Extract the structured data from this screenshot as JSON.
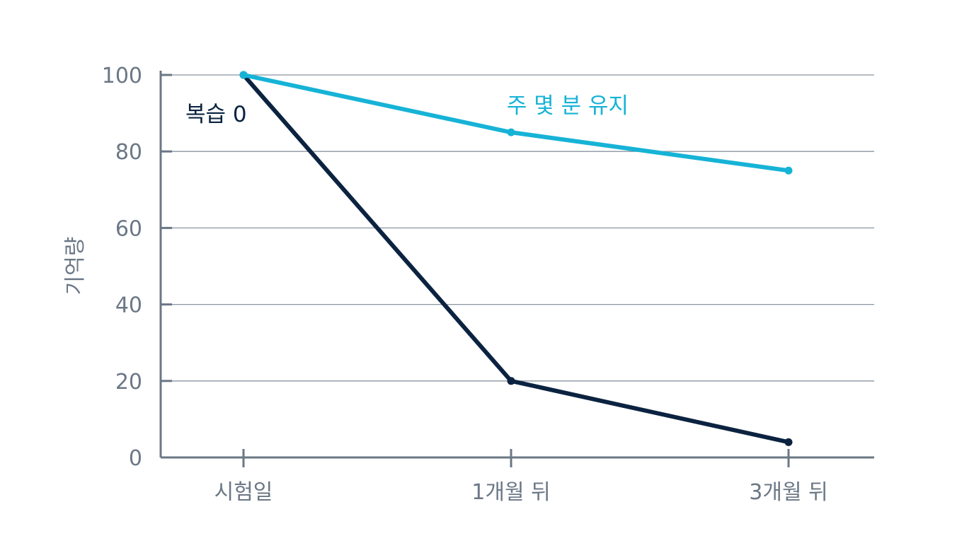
{
  "chart_data": {
    "type": "line",
    "title": "",
    "xlabel": "",
    "ylabel": "기억량",
    "categories": [
      "시험일",
      "1개월 뒤",
      "3개월 뒤"
    ],
    "ylim": [
      0,
      100
    ],
    "yticks": [
      0,
      20,
      40,
      60,
      80,
      100
    ],
    "grid": true,
    "series": [
      {
        "name": "주 몇 분 유지",
        "values": [
          100,
          85,
          75
        ],
        "color": "#16b3d6"
      },
      {
        "name": "복습 0",
        "values": [
          100,
          20,
          4
        ],
        "color": "#0b2340"
      }
    ],
    "axis_color": "#6b7785",
    "grid_color": "#8a95a1"
  }
}
